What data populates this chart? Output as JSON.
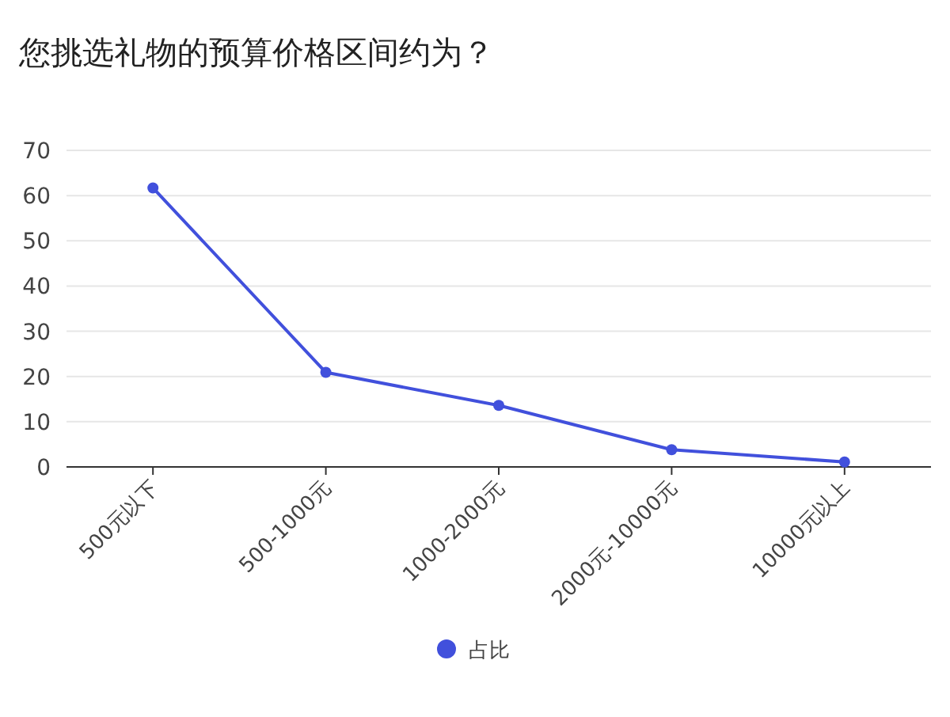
{
  "chart_data": {
    "type": "line",
    "title": "您挑选礼物的预算价格区间约为？",
    "categories": [
      "500元以下",
      "500-1000元",
      "1000-2000元",
      "2000元-10000元",
      "10000元以上"
    ],
    "series": [
      {
        "name": "占比",
        "color": "#4150dc",
        "values": [
          61.7,
          20.9,
          13.6,
          3.8,
          1.1
        ]
      }
    ],
    "ylim": [
      0,
      70
    ],
    "yticks": [
      0,
      10,
      20,
      30,
      40,
      50,
      60,
      70
    ],
    "grid": "y",
    "legend": "bottom",
    "marker": "circle",
    "line_style": "solid"
  }
}
